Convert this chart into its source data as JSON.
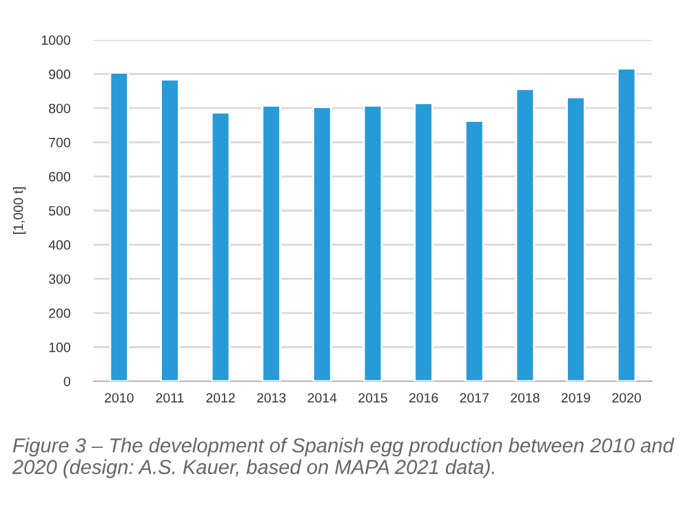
{
  "chart_data": {
    "type": "bar",
    "ylabel": "[1,000 t]",
    "categories": [
      "2010",
      "2011",
      "2012",
      "2013",
      "2014",
      "2015",
      "2016",
      "2017",
      "2018",
      "2019",
      "2020"
    ],
    "values": [
      904,
      884,
      787,
      807,
      803,
      807,
      815,
      763,
      856,
      832,
      916
    ],
    "color": "#269bd8",
    "ylim": [
      0,
      1000
    ],
    "yticks": [
      0,
      100,
      200,
      300,
      400,
      500,
      600,
      700,
      800,
      900,
      1000
    ],
    "grid": "y",
    "annotations": [
      "Figure 3 – The development of Spanish egg production between 2010 and 2020 (design: A.S. Kauer, based on MAPA 2021 data)."
    ]
  }
}
